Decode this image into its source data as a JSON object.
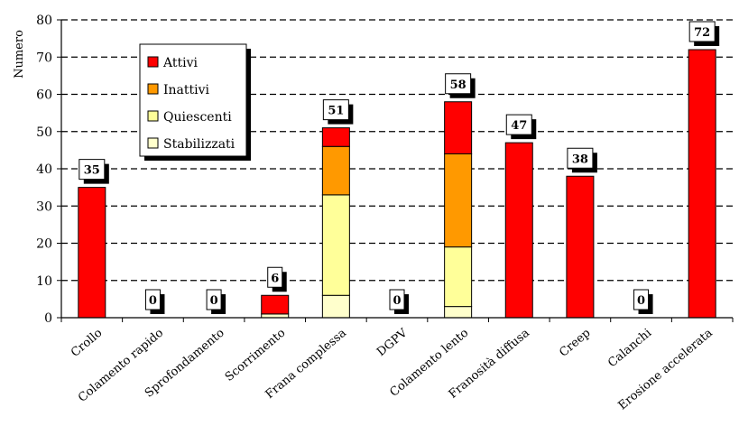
{
  "chart_data": {
    "type": "bar",
    "stacked": true,
    "ylabel": "Numero",
    "xlabel": "",
    "ylim": [
      0,
      80
    ],
    "yticks": [
      0,
      10,
      20,
      30,
      40,
      50,
      60,
      70,
      80
    ],
    "grid": "dashed horizontal",
    "legend_position": "top-left",
    "categories": [
      "Crollo",
      "Colamento rapido",
      "Sprofondamento",
      "Scorrimento",
      "Frana complessa",
      "DGPV",
      "Colamento lento",
      "Franosità diffusa",
      "Creep",
      "Calanchi",
      "Erosione accelerata"
    ],
    "series": [
      {
        "name": "Stabilizzati",
        "color": "#ffffcc",
        "values": [
          0,
          0,
          0,
          1,
          6,
          0,
          3,
          0,
          0,
          0,
          0
        ]
      },
      {
        "name": "Quiescenti",
        "color": "#ffff99",
        "values": [
          0,
          0,
          0,
          0,
          27,
          0,
          16,
          0,
          0,
          0,
          0
        ]
      },
      {
        "name": "Inattivi",
        "color": "#ff9900",
        "values": [
          0,
          0,
          0,
          0,
          13,
          0,
          25,
          0,
          0,
          0,
          0
        ]
      },
      {
        "name": "Attivi",
        "color": "#ff0000",
        "values": [
          35,
          0,
          0,
          5,
          5,
          0,
          14,
          47,
          38,
          0,
          72
        ]
      }
    ],
    "totals": [
      35,
      0,
      0,
      6,
      51,
      0,
      58,
      47,
      38,
      0,
      72
    ],
    "legend_order": [
      "Attivi",
      "Inattivi",
      "Quiescenti",
      "Stabilizzati"
    ]
  }
}
